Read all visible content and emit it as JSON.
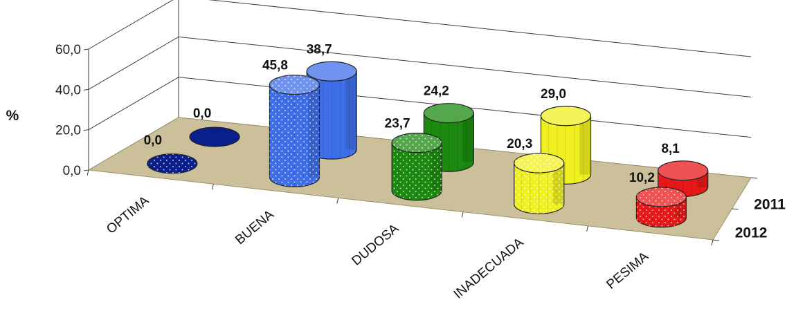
{
  "chart_data": {
    "type": "bar",
    "title": "",
    "xlabel": "",
    "ylabel": "%",
    "ylim": [
      0,
      60
    ],
    "yticks": [
      "0,0",
      "20,0",
      "40,0",
      "60,0"
    ],
    "grid": true,
    "categories": [
      "OPTIMA",
      "BUENA",
      "DUDOSA",
      "INADECUADA",
      "PESIMA"
    ],
    "series": [
      {
        "name": "2012",
        "values": [
          0.0,
          45.8,
          23.7,
          20.3,
          10.2
        ],
        "labels": [
          "0,0",
          "45,8",
          "23,7",
          "20,3",
          "10,2"
        ]
      },
      {
        "name": "2011",
        "values": [
          0.0,
          38.7,
          24.2,
          29.0,
          8.1
        ],
        "labels": [
          "0,0",
          "38,7",
          "24,2",
          "29,0",
          "8,1"
        ]
      }
    ],
    "colors": [
      "#0a1e8c",
      "#3f6fe8",
      "#1c8a10",
      "#f0f020",
      "#e81818"
    ]
  }
}
